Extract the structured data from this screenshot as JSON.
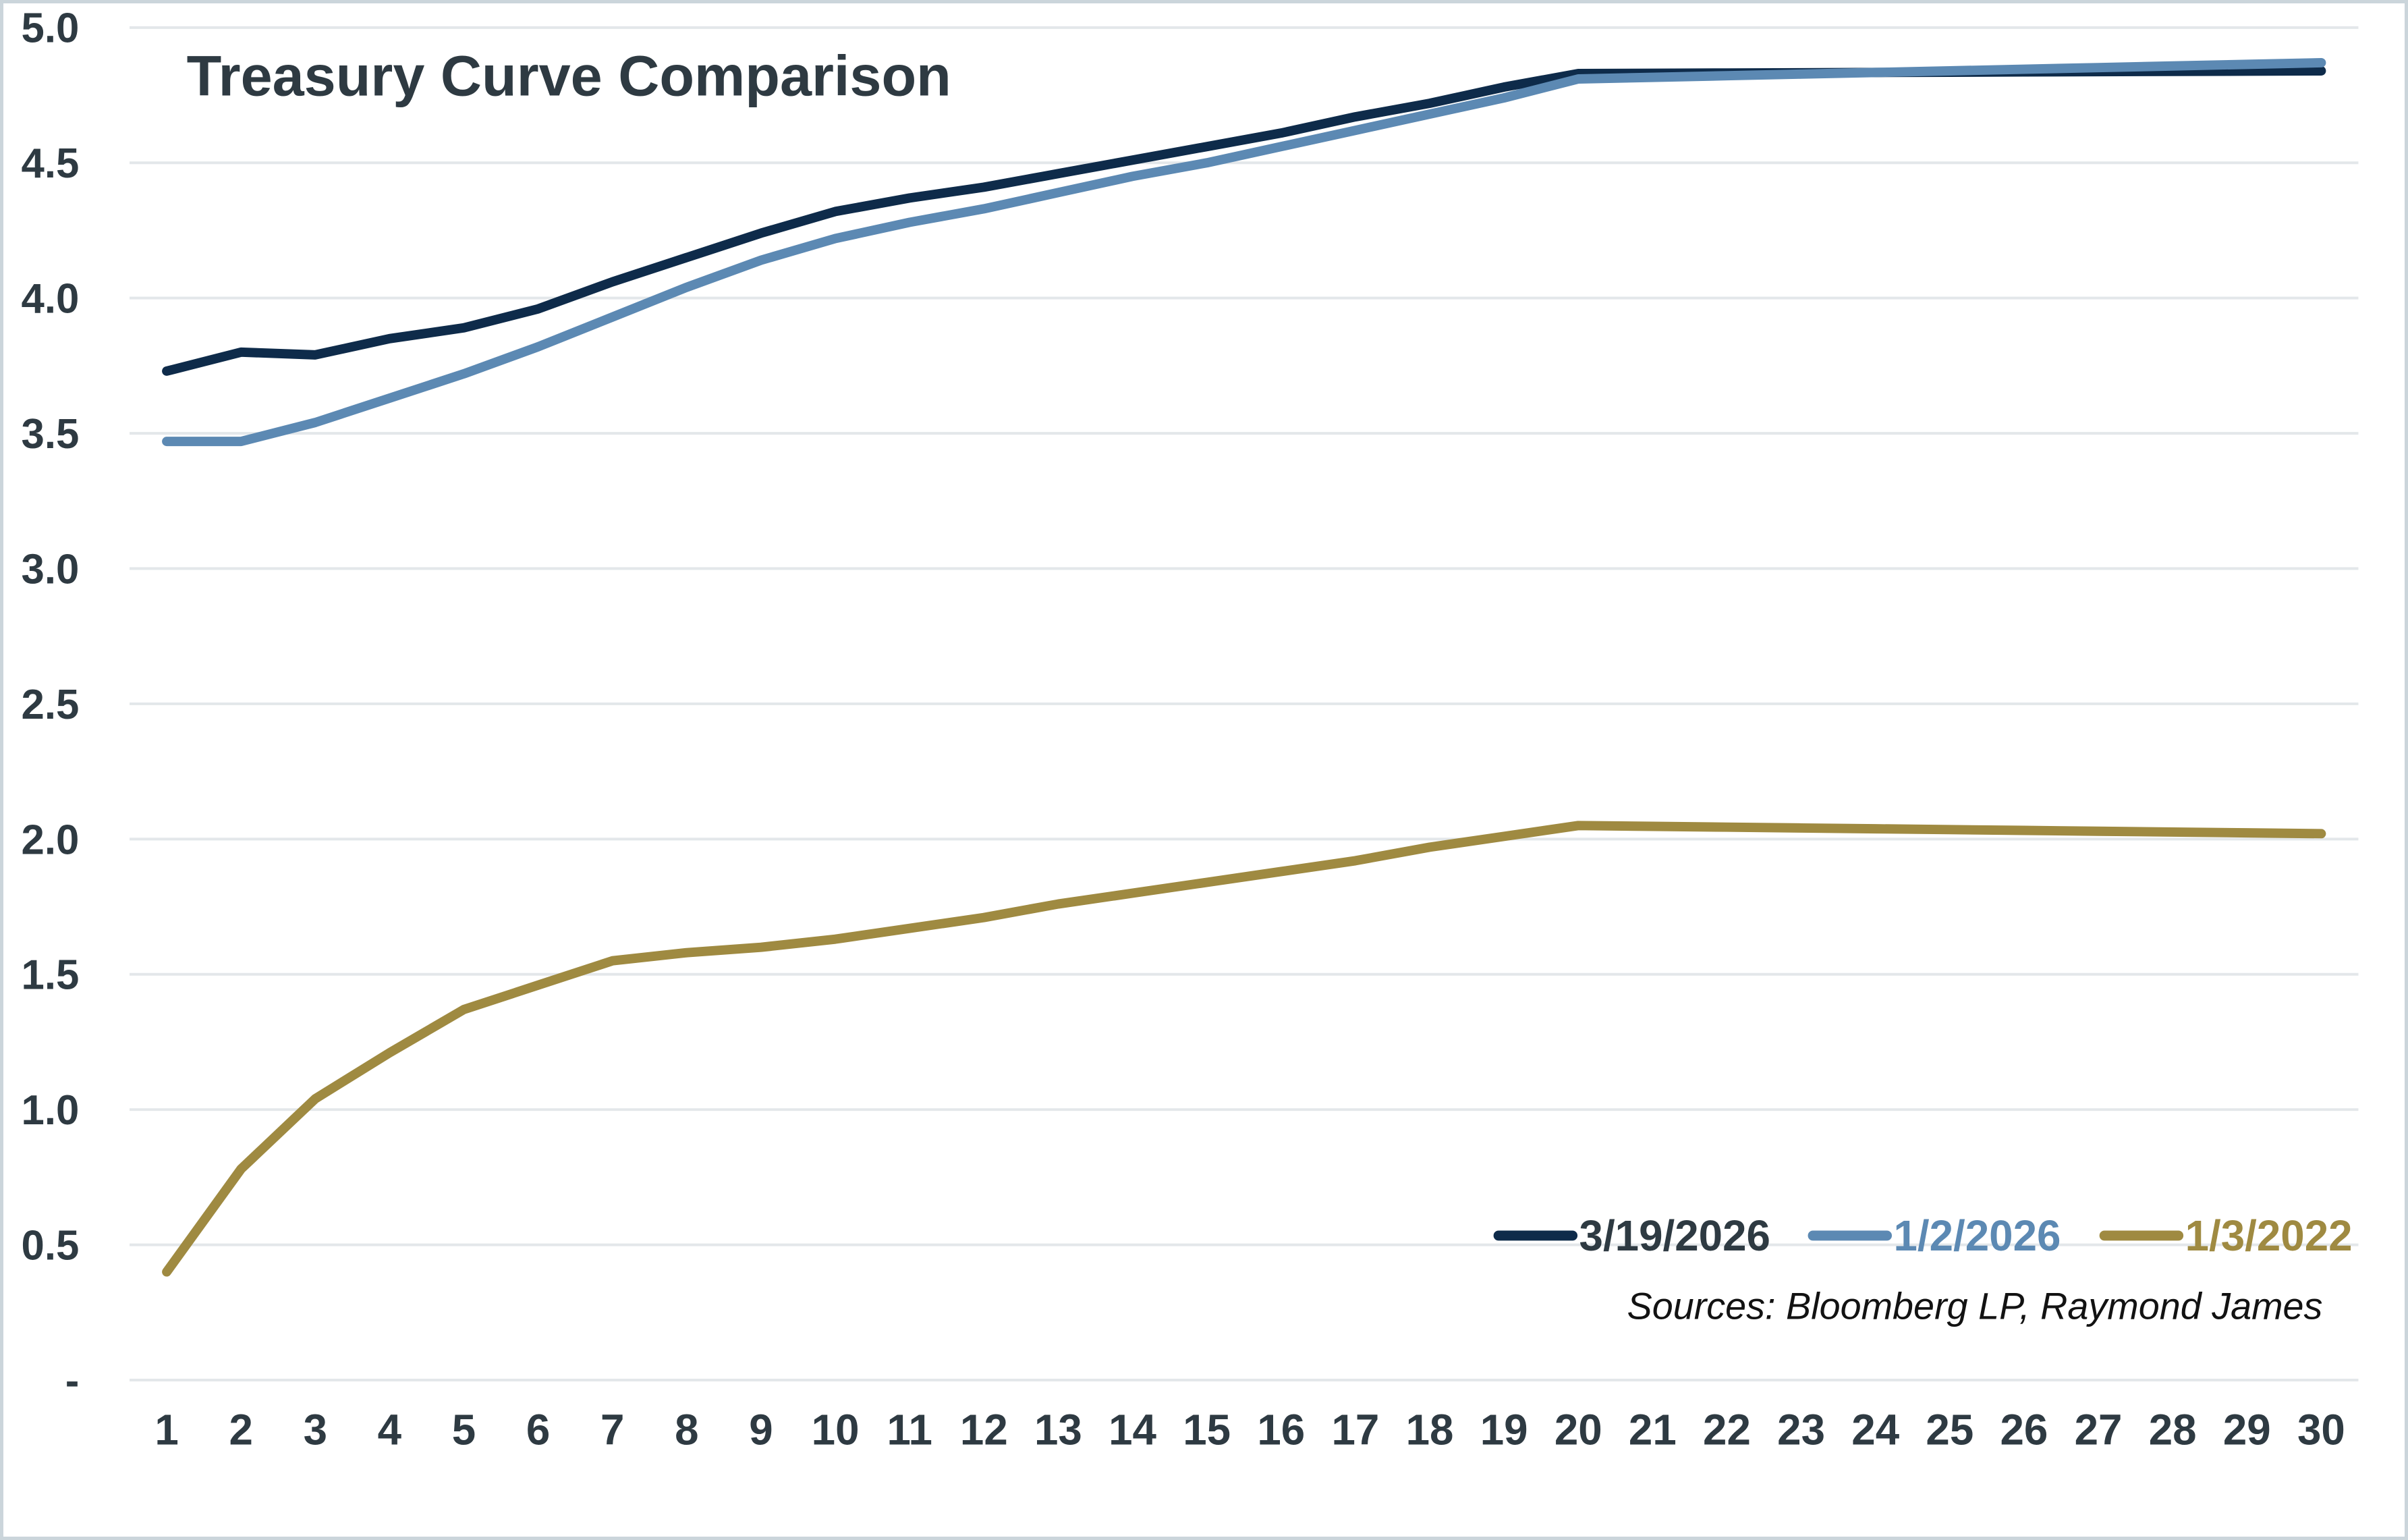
{
  "colors": {
    "text": "#2E3A42",
    "gridline": "#E3E7EA",
    "frame_border": "#CBD5DB",
    "background": "#FFFFFF"
  },
  "chart_data": {
    "type": "line",
    "title": "Treasury Curve Comparison",
    "source_note": "Sources: Bloomberg LP, Raymond James",
    "xlabel": "",
    "ylabel": "",
    "x": [
      1,
      2,
      3,
      4,
      5,
      6,
      7,
      8,
      9,
      10,
      11,
      12,
      13,
      14,
      15,
      16,
      17,
      18,
      19,
      20,
      21,
      22,
      23,
      24,
      25,
      26,
      27,
      28,
      29,
      30
    ],
    "ylim": [
      0,
      5
    ],
    "y_tick_step": 0.5,
    "y_tick_labels": [
      "-",
      "0.5",
      "1.0",
      "1.5",
      "2.0",
      "2.5",
      "3.0",
      "3.5",
      "4.0",
      "4.5",
      "5.0"
    ],
    "grid": "horizontal",
    "legend_position": "inside-bottom-right",
    "series": [
      {
        "name": "3/19/2026",
        "color": "#0E2B4A",
        "label_color": "#2E3A42",
        "values": [
          3.73,
          3.8,
          3.79,
          3.85,
          3.89,
          3.96,
          4.06,
          4.15,
          4.24,
          4.32,
          4.37,
          4.41,
          4.46,
          4.51,
          4.56,
          4.61,
          4.67,
          4.72,
          4.78,
          4.83,
          4.831,
          4.832,
          4.833,
          4.834,
          4.835,
          4.836,
          4.837,
          4.838,
          4.839,
          4.84
        ]
      },
      {
        "name": "1/2/2026",
        "color": "#5C89B3",
        "label_color": "#5C89B3",
        "values": [
          3.47,
          3.47,
          3.54,
          3.63,
          3.72,
          3.82,
          3.93,
          4.04,
          4.14,
          4.22,
          4.28,
          4.33,
          4.39,
          4.45,
          4.5,
          4.56,
          4.62,
          4.68,
          4.74,
          4.81,
          4.816,
          4.822,
          4.828,
          4.834,
          4.84,
          4.846,
          4.852,
          4.858,
          4.864,
          4.87
        ]
      },
      {
        "name": "1/3/2022",
        "color": "#9F8A41",
        "label_color": "#9F8A41",
        "values": [
          0.4,
          0.78,
          1.04,
          1.21,
          1.37,
          1.46,
          1.55,
          1.58,
          1.6,
          1.63,
          1.67,
          1.71,
          1.76,
          1.8,
          1.84,
          1.88,
          1.92,
          1.97,
          2.01,
          2.05,
          2.047,
          2.044,
          2.041,
          2.038,
          2.035,
          2.032,
          2.029,
          2.026,
          2.023,
          2.02
        ]
      }
    ]
  }
}
